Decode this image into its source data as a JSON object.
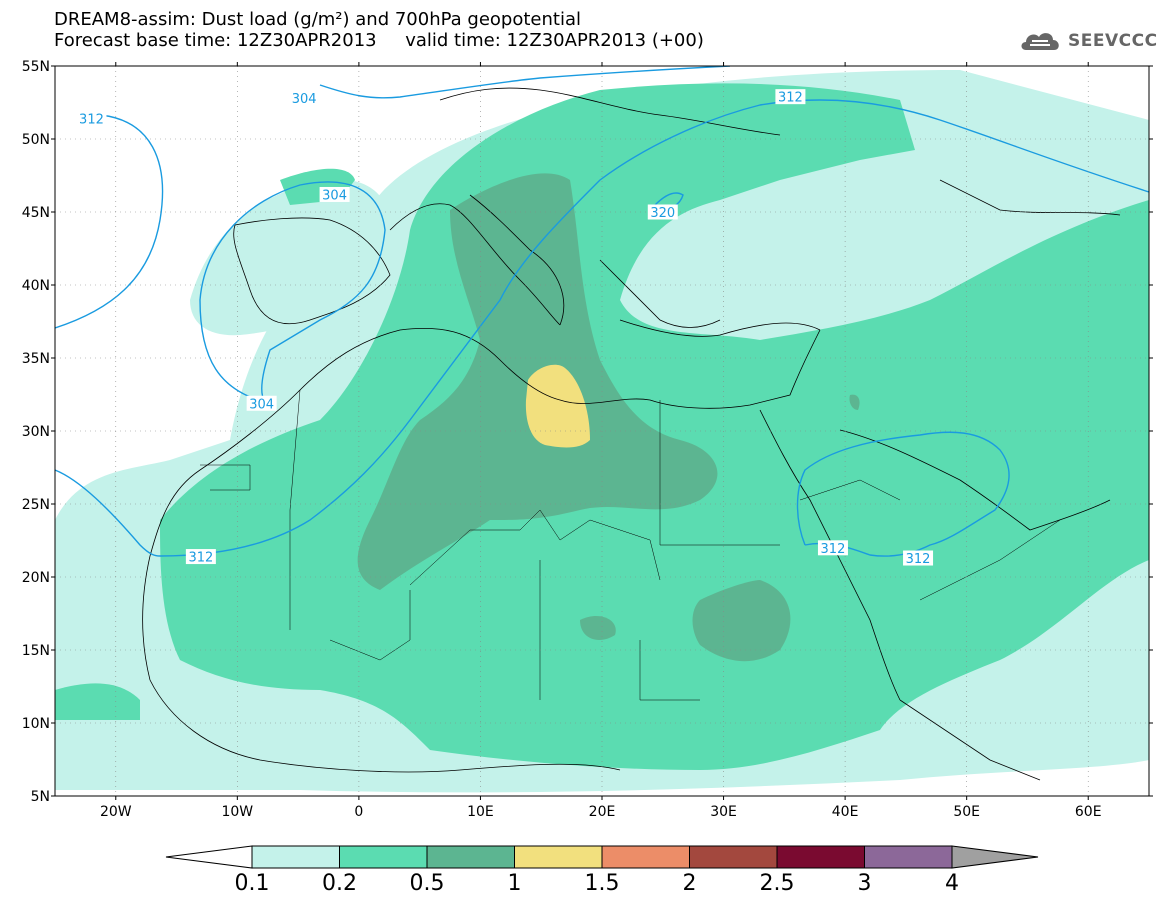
{
  "header": {
    "title_line1": "DREAM8-assim: Dust load (g/m²) and 700hPa geopotential",
    "title_line2": "Forecast base time: 12Z30APR2013     valid time: 12Z30APR2013 (+00)",
    "logo_text": "SEEVCCC"
  },
  "map": {
    "lon_range": [
      -25,
      65
    ],
    "lat_range": [
      5,
      55
    ],
    "lat_ticks": [
      {
        "lat": 55,
        "label": "55N"
      },
      {
        "lat": 50,
        "label": "50N"
      },
      {
        "lat": 45,
        "label": "45N"
      },
      {
        "lat": 40,
        "label": "40N"
      },
      {
        "lat": 35,
        "label": "35N"
      },
      {
        "lat": 30,
        "label": "30N"
      },
      {
        "lat": 25,
        "label": "25N"
      },
      {
        "lat": 20,
        "label": "20N"
      },
      {
        "lat": 15,
        "label": "15N"
      },
      {
        "lat": 10,
        "label": "10N"
      },
      {
        "lat": 5,
        "label": "5N"
      }
    ],
    "lon_ticks": [
      {
        "lon": -20,
        "label": "20W"
      },
      {
        "lon": -10,
        "label": "10W"
      },
      {
        "lon": 0,
        "label": "0"
      },
      {
        "lon": 10,
        "label": "10E"
      },
      {
        "lon": 20,
        "label": "20E"
      },
      {
        "lon": 30,
        "label": "30E"
      },
      {
        "lon": 40,
        "label": "40E"
      },
      {
        "lon": 50,
        "label": "50E"
      },
      {
        "lon": 60,
        "label": "60E"
      }
    ],
    "contour_labels": [
      {
        "text": "304",
        "lon": -4.5,
        "lat": 52.8
      },
      {
        "text": "312",
        "lon": 35.5,
        "lat": 52.9
      },
      {
        "text": "312",
        "lon": -22,
        "lat": 51.4
      },
      {
        "text": "304",
        "lon": -2,
        "lat": 46.2
      },
      {
        "text": "320",
        "lon": 25,
        "lat": 45.0
      },
      {
        "text": "304",
        "lon": -8,
        "lat": 31.9
      },
      {
        "text": "312",
        "lon": -13,
        "lat": 21.4
      },
      {
        "text": "312",
        "lon": 39,
        "lat": 22.0
      },
      {
        "text": "312",
        "lon": 46,
        "lat": 21.3
      }
    ],
    "colors": {
      "level_0_1": "#c4f2ea",
      "level_0_2": "#5bdcb1",
      "level_0_5": "#5cb591",
      "level_1": "#f2e07e",
      "contour": "#1a9be0"
    }
  },
  "colorbar": {
    "labels": [
      "0.1",
      "0.2",
      "0.5",
      "1",
      "1.5",
      "2",
      "2.5",
      "3",
      "4"
    ],
    "colors": [
      "#c4f2ea",
      "#5bdcb1",
      "#5cb591",
      "#f2e07e",
      "#ec8d68",
      "#a3483e",
      "#7a0a30",
      "#8c6899"
    ],
    "tail_color": "#a0a0a0"
  }
}
